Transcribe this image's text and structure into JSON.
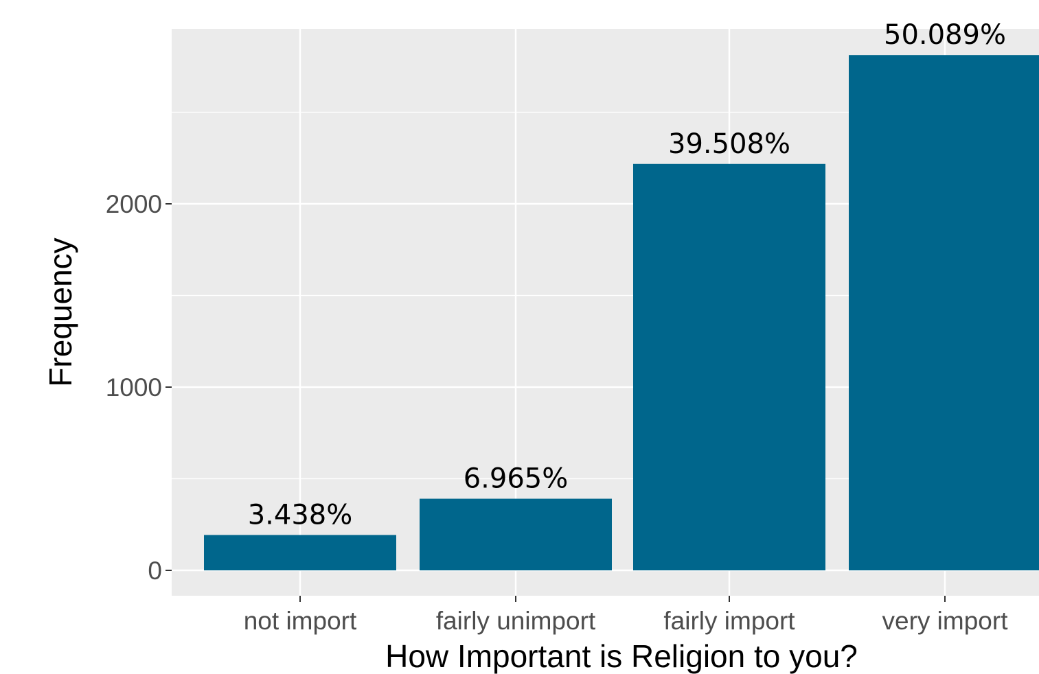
{
  "chart_data": {
    "type": "bar",
    "categories": [
      "not import",
      "fairly unimport",
      "fairly import",
      "very import"
    ],
    "values": [
      193,
      391,
      2218,
      2812
    ],
    "data_labels": [
      "3.438%",
      "6.965%",
      "39.508%",
      "50.089%"
    ],
    "title": "",
    "xlabel": "How Important is Religion to you?",
    "ylabel": "Frequency",
    "ylim": [
      -140,
      2950
    ],
    "yticks": [
      0,
      1000,
      2000
    ],
    "ytick_labels": [
      "0",
      "1000",
      "2000"
    ],
    "minor_gridlines": [
      500,
      1500,
      2500
    ],
    "grid": true,
    "legend": "none",
    "bar_color": "#00668c",
    "panel_color": "#ebebeb",
    "grid_color": "#ffffff"
  }
}
